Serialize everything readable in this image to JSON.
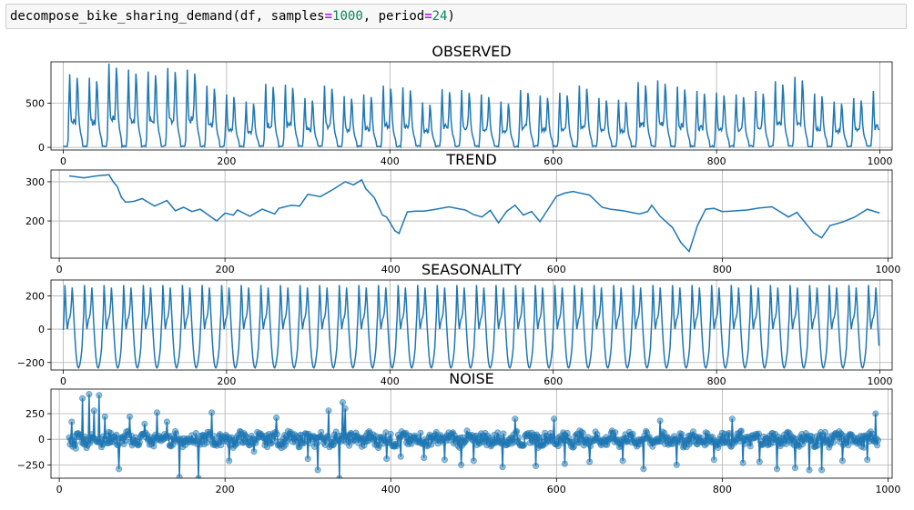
{
  "cell": {
    "func": "decompose_bike_sharing_demand",
    "open": "(df, samples",
    "eq1": "=",
    "samples_value": "1000",
    "mid": ", period",
    "eq2": "=",
    "period_value": "24",
    "close": ")"
  },
  "colors": {
    "line": "#1f77b4",
    "grid": "#b0b0b0"
  },
  "chart_data": [
    {
      "type": "line",
      "title": "OBSERVED",
      "xlim": [
        -15,
        1015
      ],
      "ylim": [
        -30,
        970
      ],
      "xticks": [
        0,
        200,
        400,
        600,
        800,
        1000
      ],
      "yticks": [
        0,
        500
      ],
      "grid": true,
      "series": [
        {
          "kind": "daily-cycle",
          "period": 24,
          "n": 1000,
          "daily_peaks": [
            830,
            790,
            950,
            880,
            860,
            900,
            880,
            700,
            600,
            520,
            720,
            710,
            560,
            700,
            580,
            600,
            700,
            680,
            510,
            660,
            650,
            600,
            520,
            650,
            590,
            620,
            700,
            560,
            540,
            740,
            760,
            690,
            640,
            620,
            600,
            640,
            750,
            800,
            610,
            520,
            560,
            640,
            580,
            530,
            450,
            620,
            600,
            580,
            650,
            640,
            700,
            660,
            550,
            540,
            620,
            540,
            640,
            550,
            470,
            680,
            630,
            660,
            700,
            740,
            610,
            640,
            680,
            710,
            620,
            600,
            640,
            710,
            560,
            640,
            600,
            680,
            760,
            560,
            700,
            650,
            690,
            770,
            560,
            640,
            700,
            620,
            700,
            740,
            600,
            580,
            610,
            580,
            540,
            630,
            700,
            650,
            700,
            720,
            620,
            600,
            700,
            710,
            650,
            560,
            720,
            640,
            600,
            660,
            700,
            730,
            800,
            640,
            560,
            690,
            720,
            690,
            700,
            650,
            700,
            710,
            690,
            720,
            660,
            640,
            600,
            640,
            700,
            660,
            710,
            720,
            690,
            680,
            680,
            600,
            600,
            630,
            590,
            650,
            700,
            710,
            690,
            680,
            720,
            680,
            720,
            700,
            680,
            640
          ],
          "night_min": 5
        }
      ]
    },
    {
      "type": "line",
      "title": "TREND",
      "xlim": [
        -10,
        1005
      ],
      "ylim": [
        105,
        330
      ],
      "xticks": [
        0,
        200,
        400,
        600,
        800,
        1000
      ],
      "yticks": [
        200,
        300
      ],
      "grid": true,
      "series": [
        {
          "x": [
            12,
            30,
            45,
            60,
            65,
            70,
            75,
            80,
            90,
            100,
            115,
            130,
            140,
            150,
            160,
            170,
            180,
            190,
            200,
            210,
            215,
            230,
            245,
            260,
            265,
            280,
            290,
            300,
            315,
            330,
            345,
            355,
            365,
            370,
            380,
            390,
            395,
            405,
            410,
            420,
            430,
            440,
            455,
            470,
            490,
            500,
            510,
            520,
            530,
            540,
            550,
            560,
            570,
            580,
            600,
            610,
            620,
            640,
            655,
            665,
            680,
            700,
            710,
            715,
            725,
            740,
            750,
            760,
            770,
            780,
            790,
            800,
            810,
            830,
            845,
            860,
            880,
            890,
            910,
            920,
            930,
            945,
            960,
            975,
            990
          ],
          "y": [
            315,
            310,
            315,
            318,
            300,
            288,
            260,
            248,
            250,
            257,
            238,
            252,
            226,
            235,
            224,
            230,
            215,
            200,
            220,
            215,
            228,
            212,
            230,
            218,
            232,
            240,
            238,
            268,
            262,
            280,
            300,
            292,
            305,
            282,
            260,
            215,
            210,
            175,
            168,
            223,
            225,
            225,
            230,
            236,
            228,
            216,
            210,
            227,
            195,
            225,
            240,
            215,
            224,
            198,
            263,
            271,
            275,
            266,
            235,
            230,
            226,
            218,
            224,
            240,
            212,
            183,
            145,
            122,
            188,
            230,
            232,
            224,
            225,
            228,
            233,
            236,
            210,
            222,
            170,
            157,
            188,
            197,
            210,
            230,
            220
          ]
        }
      ]
    },
    {
      "type": "line",
      "title": "SEASONALITY",
      "xlim": [
        -15,
        1015
      ],
      "ylim": [
        -245,
        295
      ],
      "xticks": [
        0,
        200,
        400,
        600,
        800,
        1000
      ],
      "yticks": [
        -200,
        0,
        200
      ],
      "grid": true,
      "series": [
        {
          "kind": "periodic",
          "period": 24,
          "n": 1000,
          "pattern": [
            -5,
            90,
            265,
            180,
            60,
            0,
            30,
            60,
            70,
            95,
            155,
            250,
            175,
            70,
            -20,
            -100,
            -165,
            -205,
            -228,
            -232,
            -220,
            -195,
            -160,
            -110
          ]
        }
      ]
    },
    {
      "type": "scatter",
      "title": "NOISE",
      "xlim": [
        -10,
        1005
      ],
      "ylim": [
        -380,
        490
      ],
      "xticks": [
        0,
        200,
        400,
        600,
        800,
        1000
      ],
      "yticks": [
        -250,
        0,
        250
      ],
      "grid": true,
      "series": [
        {
          "kind": "residual",
          "x_start": 12,
          "x_end": 988,
          "spikes": [
            [
              15,
              170
            ],
            [
              20,
              -90
            ],
            [
              28,
              400
            ],
            [
              36,
              440
            ],
            [
              42,
              280
            ],
            [
              48,
              430
            ],
            [
              55,
              220
            ],
            [
              72,
              -290
            ],
            [
              85,
              220
            ],
            [
              103,
              150
            ],
            [
              118,
              260
            ],
            [
              130,
              170
            ],
            [
              145,
              -370
            ],
            [
              168,
              -380
            ],
            [
              184,
              260
            ],
            [
              205,
              -210
            ],
            [
              235,
              -120
            ],
            [
              262,
              210
            ],
            [
              300,
              -190
            ],
            [
              312,
              -300
            ],
            [
              325,
              280
            ],
            [
              338,
              -380
            ],
            [
              342,
              360
            ],
            [
              345,
              300
            ],
            [
              395,
              -190
            ],
            [
              412,
              -170
            ],
            [
              440,
              -180
            ],
            [
              465,
              -200
            ],
            [
              485,
              -250
            ],
            [
              500,
              -210
            ],
            [
              535,
              -270
            ],
            [
              550,
              200
            ],
            [
              575,
              -260
            ],
            [
              597,
              200
            ],
            [
              610,
              -240
            ],
            [
              640,
              -220
            ],
            [
              680,
              -210
            ],
            [
              705,
              -290
            ],
            [
              725,
              180
            ],
            [
              745,
              -250
            ],
            [
              790,
              -200
            ],
            [
              812,
              200
            ],
            [
              825,
              -230
            ],
            [
              845,
              -220
            ],
            [
              866,
              -290
            ],
            [
              888,
              -280
            ],
            [
              905,
              -300
            ],
            [
              920,
              -300
            ],
            [
              945,
              -210
            ],
            [
              975,
              -200
            ],
            [
              985,
              250
            ]
          ]
        }
      ]
    }
  ]
}
